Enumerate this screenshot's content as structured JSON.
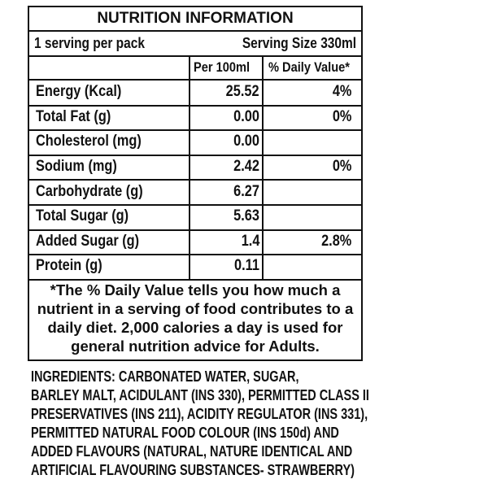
{
  "panel": {
    "title": "NUTRITION INFORMATION",
    "servings_per_pack": "1 serving per pack",
    "serving_size": "Serving Size 330ml",
    "col_per100": "Per 100ml",
    "col_dv": "% Daily Value*",
    "rows": [
      {
        "name": "Energy (Kcal)",
        "per100": "25.52",
        "dv": "4%"
      },
      {
        "name": "Total Fat (g)",
        "per100": "0.00",
        "dv": "0%"
      },
      {
        "name": "Cholesterol (mg)",
        "per100": "0.00",
        "dv": ""
      },
      {
        "name": "Sodium (mg)",
        "per100": "2.42",
        "dv": "0%"
      },
      {
        "name": "Carbohydrate (g)",
        "per100": "6.27",
        "dv": ""
      },
      {
        "name": "Total Sugar (g)",
        "per100": "5.63",
        "dv": ""
      },
      {
        "name": "Added Sugar (g)",
        "per100": "1.4",
        "dv": "2.8%"
      },
      {
        "name": "Protein (g)",
        "per100": "0.11",
        "dv": ""
      }
    ],
    "footnote": "*The % Daily Value tells you how much a nutrient in a serving of food contributes to a daily diet. 2,000 calories a day is used for general nutrition advice for Adults."
  },
  "ingredients": "INGREDIENTS: CARBONATED WATER, SUGAR,\nBARLEY MALT, ACIDULANT (INS 330), PERMITTED CLASS II\nPRESERVATIVES (INS 211), ACIDITY REGULATOR (INS 331),\nPERMITTED NATURAL FOOD COLOUR (INS 150d) AND\nADDED FLAVOURS (NATURAL, NATURE IDENTICAL AND\nARTIFICIAL FLAVOURING SUBSTANCES- STRAWBERRY)"
}
